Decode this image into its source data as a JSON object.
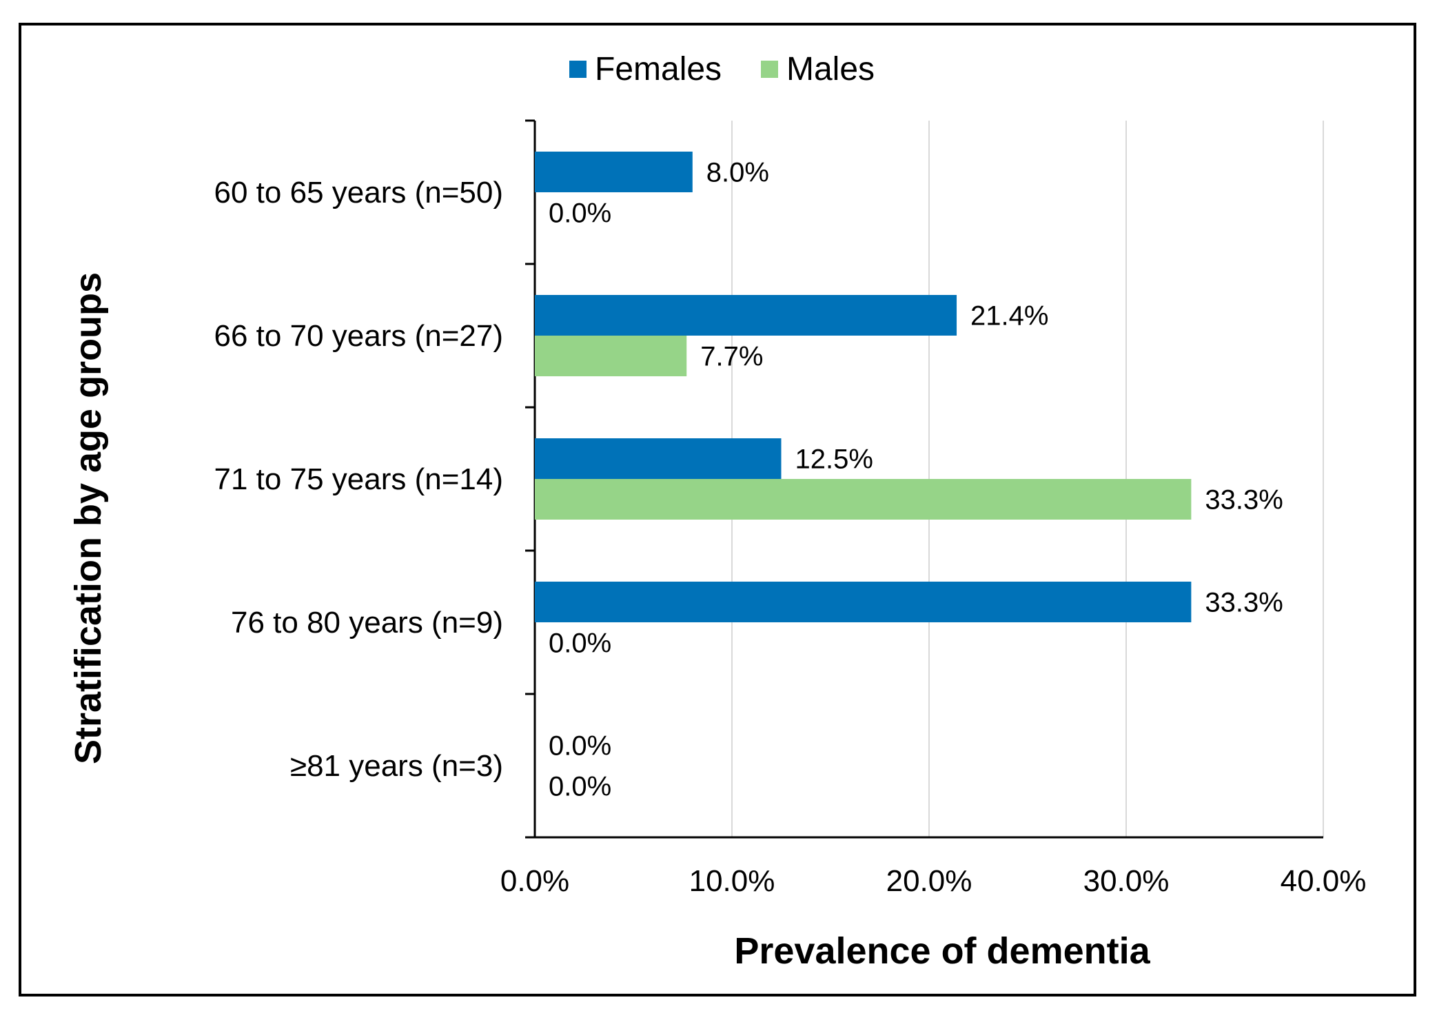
{
  "chart_data": {
    "type": "bar",
    "orientation": "horizontal",
    "categories": [
      "60 to 65 years (n=50)",
      "66 to 70 years (n=27)",
      "71 to 75 years (n=14)",
      "76 to 80 years (n=9)",
      "≥81 years (n=3)"
    ],
    "series": [
      {
        "name": "Females",
        "color": "#0072b8",
        "values": [
          8.0,
          21.4,
          12.5,
          33.3,
          0.0
        ],
        "labels": [
          "8.0%",
          "21.4%",
          "12.5%",
          "33.3%",
          "0.0%"
        ]
      },
      {
        "name": "Males",
        "color": "#96d488",
        "values": [
          0.0,
          7.7,
          33.3,
          0.0,
          0.0
        ],
        "labels": [
          "0.0%",
          "7.7%",
          "33.3%",
          "0.0%",
          "0.0%"
        ]
      }
    ],
    "xlabel": "Prevalence of dementia",
    "ylabel": "Stratification by age groups",
    "xlim": [
      0,
      40
    ],
    "xticks": [
      0,
      10,
      20,
      30,
      40
    ],
    "xtick_labels": [
      "0.0%",
      "10.0%",
      "20.0%",
      "30.0%",
      "40.0%"
    ],
    "grid": "vertical",
    "legend": "top-center"
  }
}
